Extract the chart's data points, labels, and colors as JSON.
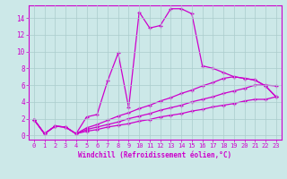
{
  "xlabel": "Windchill (Refroidissement éolien,°C)",
  "background_color": "#cce8e8",
  "grid_color": "#aacccc",
  "line_color": "#cc00cc",
  "xlim": [
    -0.5,
    23.5
  ],
  "ylim": [
    -0.5,
    15.5
  ],
  "xticks": [
    0,
    1,
    2,
    3,
    4,
    5,
    6,
    7,
    8,
    9,
    10,
    11,
    12,
    13,
    14,
    15,
    16,
    17,
    18,
    19,
    20,
    21,
    22,
    23
  ],
  "yticks": [
    0,
    2,
    4,
    6,
    8,
    10,
    12,
    14
  ],
  "series": [
    [
      1.9,
      0.2,
      1.1,
      1.0,
      0.2,
      2.2,
      2.5,
      6.5,
      9.8,
      3.3,
      14.7,
      12.8,
      13.1,
      15.1,
      15.1,
      14.5,
      8.3,
      8.0,
      7.5,
      7.0,
      6.8,
      6.6,
      5.9,
      4.6
    ],
    [
      1.9,
      0.2,
      1.1,
      1.0,
      0.2,
      0.5,
      0.7,
      1.0,
      1.2,
      1.4,
      1.7,
      1.9,
      2.2,
      2.4,
      2.6,
      2.9,
      3.1,
      3.4,
      3.6,
      3.8,
      4.1,
      4.3,
      4.3,
      4.6
    ],
    [
      1.9,
      0.2,
      1.1,
      1.0,
      0.2,
      0.7,
      1.0,
      1.3,
      1.6,
      2.0,
      2.3,
      2.6,
      3.0,
      3.3,
      3.6,
      4.0,
      4.3,
      4.6,
      5.0,
      5.3,
      5.6,
      6.0,
      6.0,
      5.9
    ],
    [
      1.9,
      0.2,
      1.1,
      1.0,
      0.2,
      0.9,
      1.3,
      1.8,
      2.3,
      2.7,
      3.2,
      3.6,
      4.1,
      4.5,
      5.0,
      5.4,
      5.9,
      6.3,
      6.8,
      7.0,
      6.8,
      6.6,
      5.9,
      4.6
    ]
  ],
  "xlabel_fontsize": 5.5,
  "tick_fontsize": 5.0,
  "linewidth": 0.9,
  "markersize": 3.5
}
